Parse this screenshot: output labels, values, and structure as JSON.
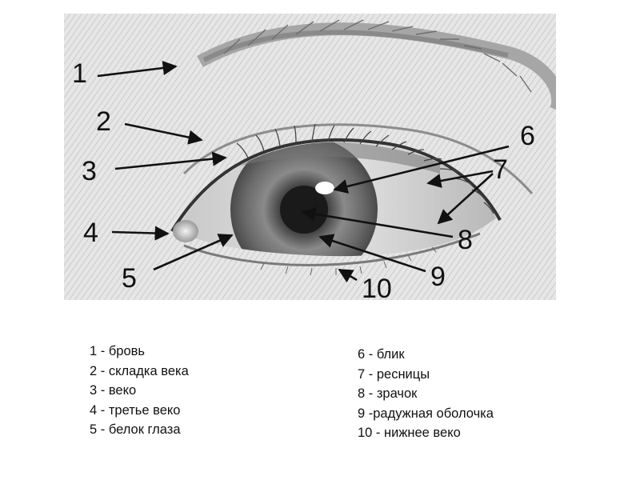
{
  "callouts": [
    "1",
    "2",
    "3",
    "4",
    "5",
    "6",
    "7",
    "8",
    "9",
    "10"
  ],
  "legend_left": [
    "1 - бровь",
    "2 - складка века",
    "3 - веко",
    "4 - третье веко",
    "5 - белок глаза"
  ],
  "legend_right": [
    "6 - блик",
    "7 - ресницы",
    "8 - зрачок",
    "9 -радужная оболочка",
    "10 - нижнее веко"
  ]
}
